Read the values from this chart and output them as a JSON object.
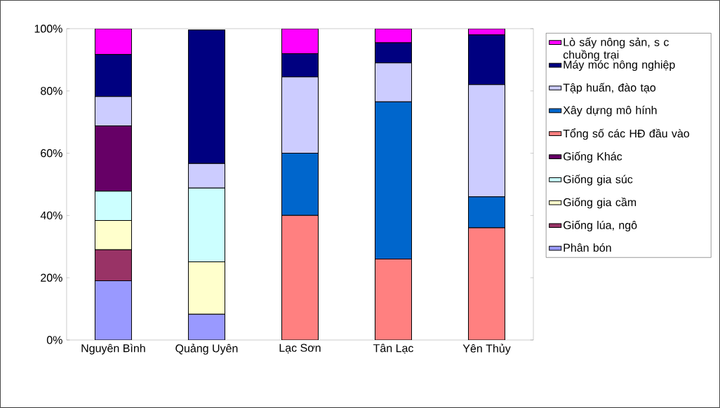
{
  "chart_data": {
    "type": "bar",
    "stacked": true,
    "categories": [
      "Nguyên Bình",
      "Quảng Uyên",
      "Lạc Sơn",
      "Tân Lạc",
      "Yên Thủy"
    ],
    "ylim": [
      0,
      100
    ],
    "yticks": [
      {
        "value": 0,
        "label": "0%"
      },
      {
        "value": 20,
        "label": "20%"
      },
      {
        "value": 40,
        "label": "40%"
      },
      {
        "value": 60,
        "label": "60%"
      },
      {
        "value": 80,
        "label": "80%"
      },
      {
        "value": 100,
        "label": "100%"
      }
    ],
    "grid": false,
    "legend": "right",
    "series": [
      {
        "name": "Phân bón",
        "color": "#9999ff",
        "values": [
          19,
          8.3,
          null,
          null,
          null
        ]
      },
      {
        "name": "Giống lúa, ngô",
        "color": "#993366",
        "values": [
          10,
          null,
          null,
          null,
          null
        ]
      },
      {
        "name": "Giống gia cầm",
        "color": "#ffffcc",
        "values": [
          9.4,
          16.8,
          null,
          null,
          null
        ]
      },
      {
        "name": "Giống gia súc",
        "color": "#ccffff",
        "values": [
          9.4,
          23.7,
          null,
          null,
          null
        ]
      },
      {
        "name": "Giống Khác",
        "color": "#660066",
        "values": [
          21,
          null,
          null,
          null,
          null
        ]
      },
      {
        "name": "Tổng số các HĐ đầu vào",
        "color": "#ff8080",
        "values": [
          null,
          null,
          40,
          26,
          36
        ]
      },
      {
        "name": "Xây dựng mô hính",
        "color": "#0066cc",
        "values": [
          null,
          null,
          20,
          50.5,
          10
        ]
      },
      {
        "name": "Tập huấn, đào tạo",
        "color": "#ccccff",
        "values": [
          9.4,
          7.9,
          24.5,
          12.5,
          36
        ]
      },
      {
        "name": "Máy móc nông nghiệp",
        "color": "#000080",
        "values": [
          13.5,
          42.9,
          7.5,
          6.5,
          16
        ]
      },
      {
        "name": "Lò sấy nông sản, s c chuồng trại",
        "color": "#ff00ff",
        "values": [
          8.3,
          null,
          8,
          4.5,
          2
        ]
      }
    ]
  }
}
